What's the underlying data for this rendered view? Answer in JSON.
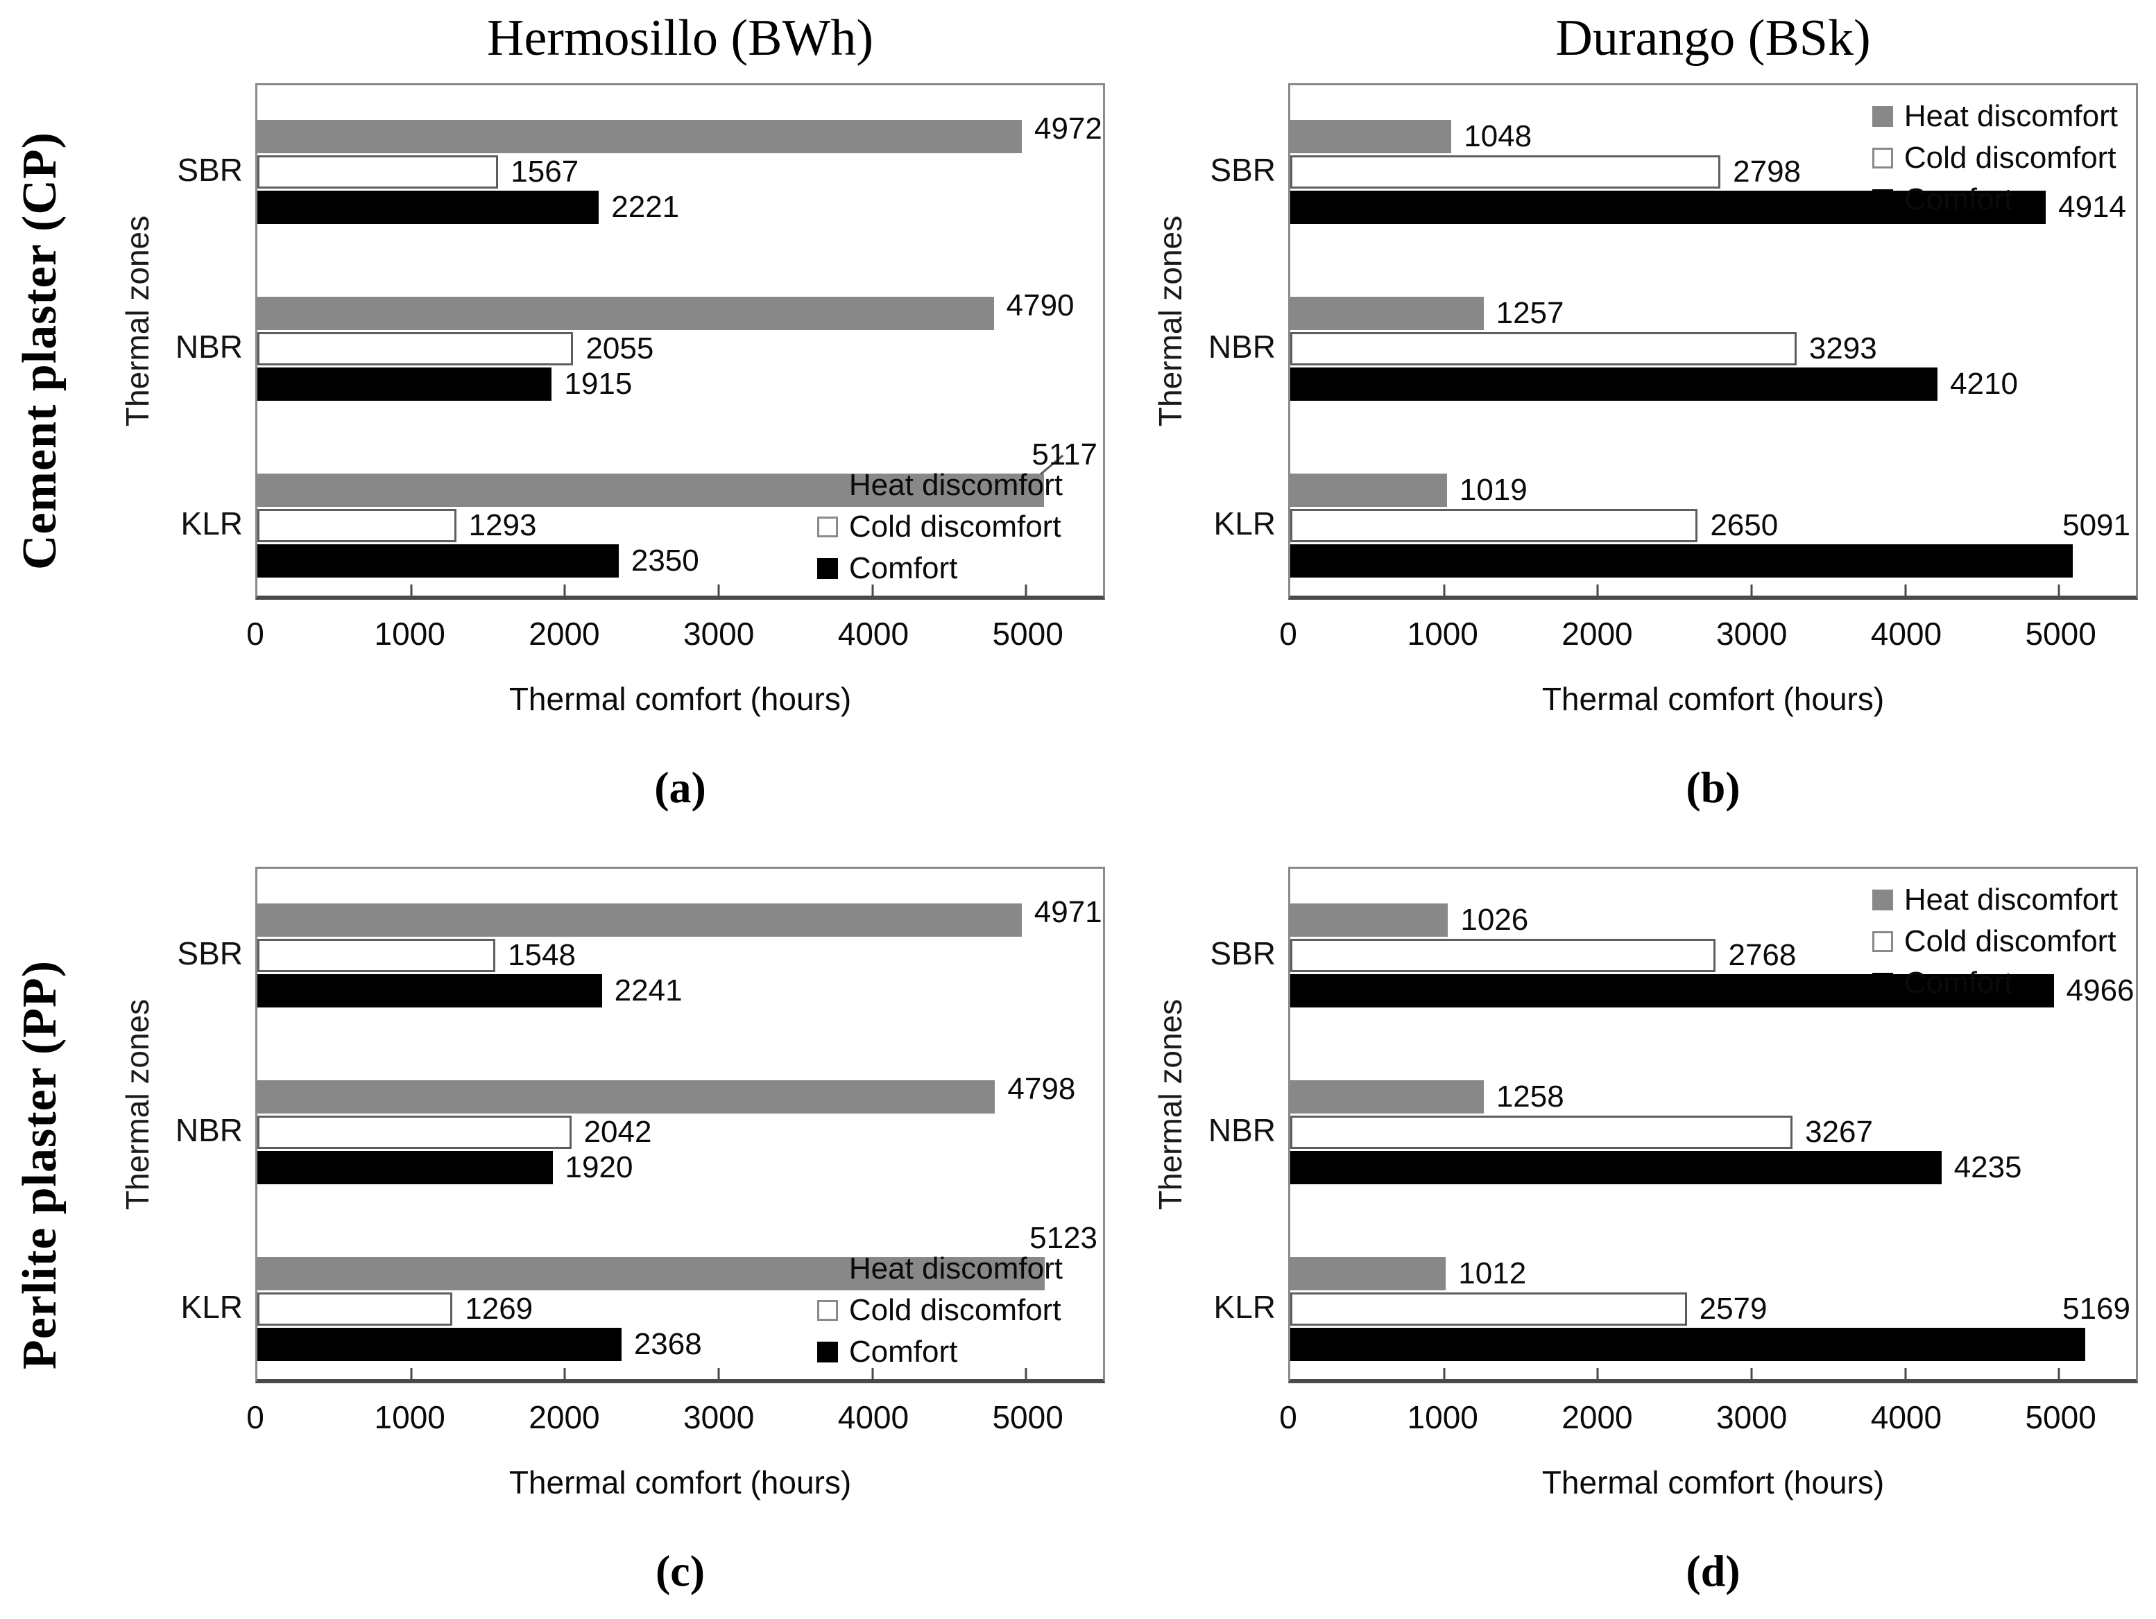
{
  "figure": {
    "row_labels": [
      "Cement plaster (CP)",
      "Perlite plaster (PP)"
    ],
    "column_titles": [
      "Hermosillo (BWh)",
      "Durango (BSk)"
    ]
  },
  "chart_data": [
    {
      "id": "a",
      "type": "bar",
      "orientation": "horizontal",
      "title": "Hermosillo (BWh)",
      "caption": "(a)",
      "row_label": "Cement plaster (CP)",
      "xlabel": "Thermal comfort (hours)",
      "ylabel": "Thermal zones",
      "xlim": [
        0,
        5500
      ],
      "xticks": [
        0,
        1000,
        2000,
        3000,
        4000,
        5000
      ],
      "grid": false,
      "legend_position": "bottom-right",
      "leader_line": true,
      "categories": [
        "SBR",
        "NBR",
        "KLR"
      ],
      "series": [
        {
          "name": "Heat discomfort",
          "color": "#888888",
          "values": [
            4972,
            4790,
            5117
          ]
        },
        {
          "name": "Cold discomfort",
          "color": "#ffffff",
          "values": [
            1567,
            2055,
            1293
          ]
        },
        {
          "name": "Comfort",
          "color": "#000000",
          "values": [
            2221,
            1915,
            2350
          ]
        }
      ]
    },
    {
      "id": "b",
      "type": "bar",
      "orientation": "horizontal",
      "title": "Durango (BSk)",
      "caption": "(b)",
      "row_label": "Cement plaster (CP)",
      "xlabel": "Thermal comfort (hours)",
      "ylabel": "Thermal zones",
      "xlim": [
        0,
        5500
      ],
      "xticks": [
        0,
        1000,
        2000,
        3000,
        4000,
        5000
      ],
      "grid": false,
      "legend_position": "top-right",
      "leader_line": false,
      "categories": [
        "SBR",
        "NBR",
        "KLR"
      ],
      "series": [
        {
          "name": "Heat discomfort",
          "color": "#888888",
          "values": [
            1048,
            1257,
            1019
          ]
        },
        {
          "name": "Cold discomfort",
          "color": "#ffffff",
          "values": [
            2798,
            3293,
            2650
          ]
        },
        {
          "name": "Comfort",
          "color": "#000000",
          "values": [
            4914,
            4210,
            5091
          ]
        }
      ]
    },
    {
      "id": "c",
      "type": "bar",
      "orientation": "horizontal",
      "title": "",
      "caption": "(c)",
      "row_label": "Perlite plaster (PP)",
      "xlabel": "Thermal comfort (hours)",
      "ylabel": "Thermal zones",
      "xlim": [
        0,
        5500
      ],
      "xticks": [
        0,
        1000,
        2000,
        3000,
        4000,
        5000
      ],
      "grid": false,
      "legend_position": "bottom-right",
      "leader_line": false,
      "categories": [
        "SBR",
        "NBR",
        "KLR"
      ],
      "series": [
        {
          "name": "Heat discomfort",
          "color": "#888888",
          "values": [
            4971,
            4798,
            5123
          ]
        },
        {
          "name": "Cold discomfort",
          "color": "#ffffff",
          "values": [
            1548,
            2042,
            1269
          ]
        },
        {
          "name": "Comfort",
          "color": "#000000",
          "values": [
            2241,
            1920,
            2368
          ]
        }
      ]
    },
    {
      "id": "d",
      "type": "bar",
      "orientation": "horizontal",
      "title": "",
      "caption": "(d)",
      "row_label": "Perlite plaster (PP)",
      "xlabel": "Thermal comfort (hours)",
      "ylabel": "Thermal zones",
      "xlim": [
        0,
        5500
      ],
      "xticks": [
        0,
        1000,
        2000,
        3000,
        4000,
        5000
      ],
      "grid": false,
      "legend_position": "top-right",
      "leader_line": false,
      "categories": [
        "SBR",
        "NBR",
        "KLR"
      ],
      "series": [
        {
          "name": "Heat discomfort",
          "color": "#888888",
          "values": [
            1026,
            1258,
            1012
          ]
        },
        {
          "name": "Cold discomfort",
          "color": "#ffffff",
          "values": [
            2768,
            3267,
            2579
          ]
        },
        {
          "name": "Comfort",
          "color": "#000000",
          "values": [
            4966,
            4235,
            5169
          ]
        }
      ]
    }
  ],
  "style_colors": {
    "heat": "#888888",
    "cold_fill": "#ffffff",
    "cold_border": "#5e5e5e",
    "comfort": "#000000",
    "frame": "#8a8a8a",
    "axis": "#4a4a4a"
  }
}
